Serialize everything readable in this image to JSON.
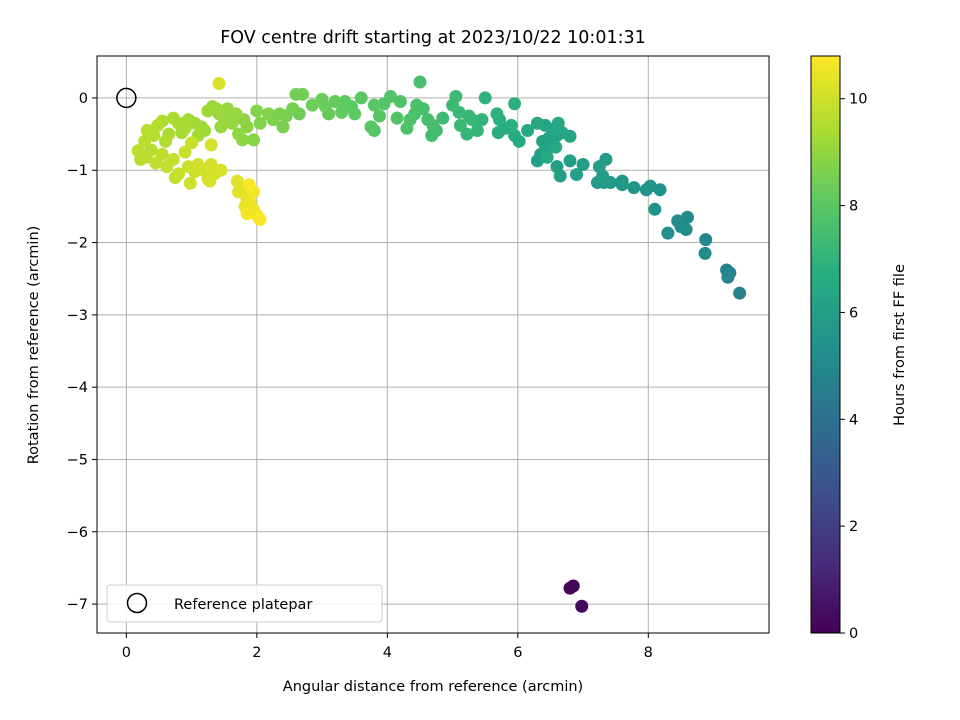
{
  "chart_data": {
    "type": "scatter",
    "title": "FOV centre drift starting at 2023/10/22 10:01:31",
    "xlabel": "Angular distance from reference (arcmin)",
    "ylabel": "Rotation from reference (arcmin)",
    "colorbar_label": "Hours from first FF file",
    "xlim": [
      -0.45,
      9.85
    ],
    "ylim": [
      -7.4,
      0.58
    ],
    "clim": [
      0,
      10.8
    ],
    "colormap": "viridis",
    "grid": true,
    "legend_placement": "lower-left",
    "xticks": [
      {
        "v": 0,
        "label": "0"
      },
      {
        "v": 2,
        "label": "2"
      },
      {
        "v": 4,
        "label": "4"
      },
      {
        "v": 6,
        "label": "6"
      },
      {
        "v": 8,
        "label": "8"
      }
    ],
    "yticks": [
      {
        "v": 0,
        "label": "0"
      },
      {
        "v": -1,
        "label": "−1"
      },
      {
        "v": -2,
        "label": "−2"
      },
      {
        "v": -3,
        "label": "−3"
      },
      {
        "v": -4,
        "label": "−4"
      },
      {
        "v": -5,
        "label": "−5"
      },
      {
        "v": -6,
        "label": "−6"
      },
      {
        "v": -7,
        "label": "−7"
      }
    ],
    "cticks": [
      {
        "v": 0,
        "label": "0"
      },
      {
        "v": 2,
        "label": "2"
      },
      {
        "v": 4,
        "label": "4"
      },
      {
        "v": 6,
        "label": "6"
      },
      {
        "v": 8,
        "label": "8"
      },
      {
        "v": 10,
        "label": "10"
      }
    ],
    "reference": {
      "name": "Reference platepar",
      "x": 0,
      "y": 0
    },
    "points": [
      [
        6.8,
        -6.78,
        0.1
      ],
      [
        6.85,
        -6.75,
        0.15
      ],
      [
        6.98,
        -7.03,
        0.2
      ],
      [
        9.4,
        -2.7,
        4.7
      ],
      [
        9.2,
        -2.38,
        4.8
      ],
      [
        9.25,
        -2.42,
        4.85
      ],
      [
        9.22,
        -2.48,
        4.9
      ],
      [
        8.88,
        -1.96,
        5.0
      ],
      [
        8.87,
        -2.15,
        5.05
      ],
      [
        8.6,
        -1.65,
        5.1
      ],
      [
        8.58,
        -1.82,
        5.15
      ],
      [
        8.45,
        -1.7,
        5.2
      ],
      [
        8.5,
        -1.78,
        5.25
      ],
      [
        8.3,
        -1.87,
        5.3
      ],
      [
        8.18,
        -1.27,
        5.4
      ],
      [
        8.1,
        -1.54,
        5.45
      ],
      [
        8.03,
        -1.22,
        5.5
      ],
      [
        7.97,
        -1.27,
        5.55
      ],
      [
        7.78,
        -1.24,
        5.6
      ],
      [
        7.6,
        -1.15,
        5.65
      ],
      [
        7.6,
        -1.2,
        5.7
      ],
      [
        7.42,
        -1.17,
        5.75
      ],
      [
        7.32,
        -1.17,
        5.8
      ],
      [
        7.22,
        -1.17,
        5.85
      ],
      [
        7.3,
        -1.08,
        5.85
      ],
      [
        7.35,
        -0.85,
        5.9
      ],
      [
        7.25,
        -0.95,
        5.9
      ],
      [
        7.0,
        -0.92,
        5.95
      ],
      [
        6.8,
        -0.87,
        6.0
      ],
      [
        6.9,
        -1.06,
        6.0
      ],
      [
        6.65,
        -1.08,
        6.05
      ],
      [
        6.6,
        -0.95,
        6.05
      ],
      [
        6.3,
        -0.87,
        6.1
      ],
      [
        6.35,
        -0.78,
        6.1
      ],
      [
        6.42,
        -0.72,
        6.15
      ],
      [
        6.5,
        -0.68,
        6.2
      ],
      [
        6.38,
        -0.6,
        6.2
      ],
      [
        6.48,
        -0.55,
        6.25
      ],
      [
        6.6,
        -0.52,
        6.25
      ],
      [
        6.68,
        -0.48,
        6.3
      ],
      [
        6.8,
        -0.53,
        6.3
      ],
      [
        6.55,
        -0.43,
        6.35
      ],
      [
        6.42,
        -0.38,
        6.35
      ],
      [
        6.3,
        -0.35,
        6.4
      ],
      [
        6.15,
        -0.45,
        6.4
      ],
      [
        6.62,
        -0.35,
        6.45
      ],
      [
        6.58,
        -0.68,
        6.45
      ],
      [
        6.45,
        -0.82,
        6.5
      ],
      [
        6.02,
        -0.6,
        6.55
      ],
      [
        5.95,
        -0.52,
        6.6
      ],
      [
        5.8,
        -0.42,
        6.65
      ],
      [
        5.7,
        -0.48,
        6.7
      ],
      [
        5.72,
        -0.3,
        6.75
      ],
      [
        5.9,
        -0.38,
        6.8
      ],
      [
        5.95,
        -0.08,
        6.85
      ],
      [
        5.68,
        -0.22,
        6.9
      ],
      [
        5.5,
        0.0,
        6.95
      ],
      [
        5.45,
        -0.3,
        7.0
      ],
      [
        5.38,
        -0.45,
        7.05
      ],
      [
        5.22,
        -0.5,
        7.1
      ],
      [
        5.3,
        -0.3,
        7.15
      ],
      [
        5.1,
        -0.2,
        7.2
      ],
      [
        5.25,
        -0.25,
        7.2
      ],
      [
        5.12,
        -0.38,
        7.25
      ],
      [
        5.0,
        -0.1,
        7.3
      ],
      [
        5.05,
        0.02,
        7.3
      ],
      [
        4.85,
        -0.28,
        7.35
      ],
      [
        4.75,
        -0.45,
        7.4
      ],
      [
        4.68,
        -0.52,
        7.45
      ],
      [
        4.7,
        -0.38,
        7.5
      ],
      [
        4.62,
        -0.3,
        7.5
      ],
      [
        4.55,
        -0.15,
        7.55
      ],
      [
        4.5,
        0.22,
        7.6
      ],
      [
        4.45,
        -0.1,
        7.6
      ],
      [
        4.42,
        -0.22,
        7.65
      ],
      [
        4.35,
        -0.3,
        7.7
      ],
      [
        4.3,
        -0.42,
        7.7
      ],
      [
        4.2,
        -0.05,
        7.75
      ],
      [
        4.15,
        -0.28,
        7.8
      ],
      [
        4.05,
        0.02,
        7.8
      ],
      [
        3.95,
        -0.08,
        7.85
      ],
      [
        3.88,
        -0.25,
        7.9
      ],
      [
        3.8,
        -0.45,
        7.9
      ],
      [
        3.75,
        -0.4,
        7.95
      ],
      [
        3.8,
        -0.1,
        8.0
      ],
      [
        3.6,
        -0.0,
        8.0
      ],
      [
        3.45,
        -0.12,
        8.05
      ],
      [
        3.5,
        -0.22,
        8.1
      ],
      [
        3.35,
        -0.05,
        8.1
      ],
      [
        3.3,
        -0.2,
        8.15
      ],
      [
        3.2,
        -0.05,
        8.2
      ],
      [
        3.1,
        -0.22,
        8.25
      ],
      [
        3.05,
        -0.12,
        8.3
      ],
      [
        3.0,
        -0.02,
        8.3
      ],
      [
        2.85,
        -0.1,
        8.35
      ],
      [
        2.7,
        0.05,
        8.4
      ],
      [
        2.65,
        -0.22,
        8.4
      ],
      [
        2.6,
        0.05,
        8.45
      ],
      [
        2.55,
        -0.15,
        8.5
      ],
      [
        2.45,
        -0.25,
        8.55
      ],
      [
        2.4,
        -0.4,
        8.55
      ],
      [
        2.35,
        -0.22,
        8.6
      ],
      [
        2.25,
        -0.3,
        8.65
      ],
      [
        2.18,
        -0.22,
        8.7
      ],
      [
        2.05,
        -0.35,
        8.7
      ],
      [
        2.0,
        -0.18,
        8.75
      ],
      [
        1.95,
        -0.58,
        8.8
      ],
      [
        1.85,
        -0.4,
        8.85
      ],
      [
        1.8,
        -0.3,
        8.9
      ],
      [
        1.78,
        -0.58,
        8.9
      ],
      [
        1.72,
        -0.5,
        8.95
      ],
      [
        1.68,
        -0.22,
        9.0
      ],
      [
        1.62,
        -0.35,
        9.0
      ],
      [
        1.55,
        -0.15,
        9.05
      ],
      [
        1.5,
        -0.28,
        9.05
      ],
      [
        1.45,
        -0.4,
        9.1
      ],
      [
        1.42,
        -0.22,
        9.1
      ],
      [
        1.38,
        -0.15,
        9.15
      ],
      [
        1.32,
        -0.12,
        9.15
      ],
      [
        1.25,
        -0.18,
        9.2
      ],
      [
        1.2,
        -0.45,
        9.2
      ],
      [
        1.15,
        -0.4,
        9.25
      ],
      [
        1.1,
        -0.52,
        9.25
      ],
      [
        1.05,
        -0.35,
        9.3
      ],
      [
        0.95,
        -0.3,
        9.3
      ],
      [
        0.9,
        -0.42,
        9.35
      ],
      [
        0.85,
        -0.48,
        9.35
      ],
      [
        0.8,
        -0.35,
        9.4
      ],
      [
        0.72,
        -0.28,
        9.4
      ],
      [
        0.65,
        -0.5,
        9.45
      ],
      [
        0.6,
        -0.6,
        9.5
      ],
      [
        0.55,
        -0.32,
        9.5
      ],
      [
        0.48,
        -0.38,
        9.55
      ],
      [
        0.42,
        -0.52,
        9.55
      ],
      [
        0.38,
        -0.72,
        9.6
      ],
      [
        0.32,
        -0.45,
        9.6
      ],
      [
        0.28,
        -0.6,
        9.65
      ],
      [
        0.22,
        -0.85,
        9.65
      ],
      [
        0.18,
        -0.73,
        9.7
      ],
      [
        0.3,
        -0.82,
        9.7
      ],
      [
        0.45,
        -0.9,
        9.75
      ],
      [
        0.55,
        -0.78,
        9.75
      ],
      [
        0.62,
        -0.95,
        9.8
      ],
      [
        0.72,
        -0.85,
        9.8
      ],
      [
        0.8,
        -1.05,
        9.85
      ],
      [
        0.75,
        -1.1,
        9.85
      ],
      [
        0.9,
        -0.75,
        9.9
      ],
      [
        1.0,
        -0.62,
        9.9
      ],
      [
        0.95,
        -0.95,
        9.95
      ],
      [
        1.05,
        -1.02,
        9.95
      ],
      [
        1.1,
        -0.92,
        10.0
      ],
      [
        0.98,
        -1.18,
        10.0
      ],
      [
        1.2,
        -1.0,
        10.05
      ],
      [
        1.25,
        -1.12,
        10.05
      ],
      [
        1.3,
        -0.92,
        10.1
      ],
      [
        1.35,
        -1.05,
        10.1
      ],
      [
        1.45,
        -1.0,
        10.15
      ],
      [
        1.28,
        -1.15,
        10.15
      ],
      [
        1.3,
        -0.65,
        10.15
      ],
      [
        1.42,
        0.2,
        10.2
      ],
      [
        1.7,
        -1.15,
        10.25
      ],
      [
        1.72,
        -1.3,
        10.3
      ],
      [
        1.8,
        -1.25,
        10.35
      ],
      [
        1.85,
        -1.4,
        10.4
      ],
      [
        1.82,
        -1.5,
        10.45
      ],
      [
        1.9,
        -1.45,
        10.5
      ],
      [
        1.95,
        -1.55,
        10.55
      ],
      [
        2.0,
        -1.62,
        10.6
      ],
      [
        1.95,
        -1.3,
        10.65
      ],
      [
        1.85,
        -1.6,
        10.65
      ],
      [
        2.05,
        -1.68,
        10.7
      ],
      [
        1.88,
        -1.2,
        10.75
      ]
    ]
  }
}
